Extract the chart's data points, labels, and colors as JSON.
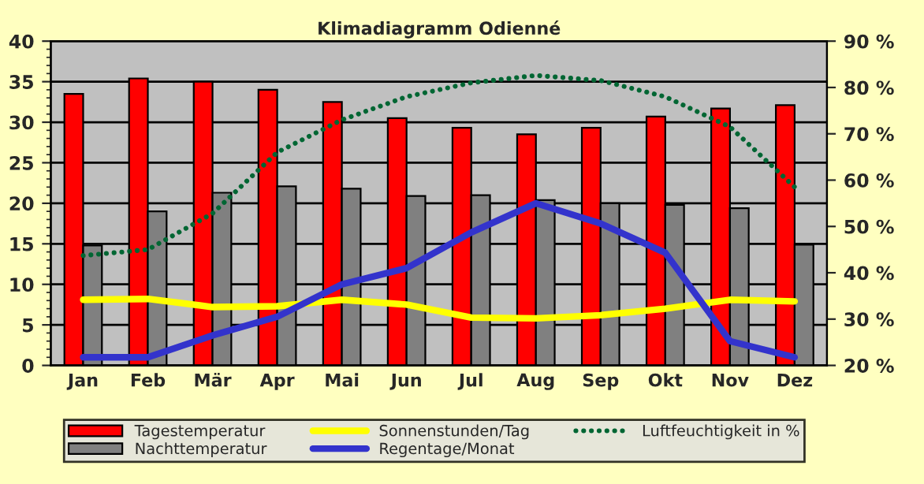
{
  "chart_data": {
    "type": "bar",
    "title": "Klimadiagramm Odienné",
    "categories": [
      "Jan",
      "Feb",
      "Mär",
      "Apr",
      "Mai",
      "Jun",
      "Jul",
      "Aug",
      "Sep",
      "Okt",
      "Nov",
      "Dez"
    ],
    "series": [
      {
        "name": "Tagestemperatur",
        "color": "#ff0000",
        "values": [
          33.5,
          35.4,
          35,
          34,
          32.5,
          30.5,
          29.3,
          28.5,
          29.3,
          30.7,
          31.7,
          32.1
        ]
      },
      {
        "name": "Nachttemperatur",
        "color": "#808080",
        "values": [
          14.8,
          19,
          21.3,
          22.1,
          21.8,
          20.9,
          21,
          20.4,
          20,
          19.8,
          19.4,
          14.9
        ]
      },
      {
        "name": "Sonnenstunden/Tag",
        "type": "line",
        "color": "#ffff00",
        "line_style": "solid",
        "values": [
          8.1,
          8.2,
          7.2,
          7.3,
          8.1,
          7.5,
          5.9,
          5.8,
          6.2,
          7.0,
          8.1,
          7.9
        ]
      },
      {
        "name": "Regentage/Monat",
        "type": "line",
        "color": "#3333cc",
        "line_style": "solid",
        "values": [
          1,
          1,
          3.7,
          6,
          10,
          12,
          16.4,
          20,
          17.5,
          13.9,
          3,
          1
        ]
      },
      {
        "name": "Luftfeuchtigkeit in %",
        "type": "line",
        "color": "#006633",
        "line_style": "dotted",
        "axis": "y2",
        "values": [
          43.7,
          45,
          52.8,
          66,
          73,
          78,
          81,
          82.6,
          81.5,
          78,
          71.5,
          58.5
        ]
      }
    ],
    "ylim": [
      0,
      40
    ],
    "yticks": [
      0,
      5,
      10,
      15,
      20,
      25,
      30,
      35,
      40
    ],
    "y2lim": [
      20,
      90
    ],
    "y2ticks": [
      {
        "value": 20,
        "label": "20 %"
      },
      {
        "value": 30,
        "label": "30 %"
      },
      {
        "value": 40,
        "label": "40 %"
      },
      {
        "value": 50,
        "label": "50 %"
      },
      {
        "value": 60,
        "label": "60 %"
      },
      {
        "value": 70,
        "label": "70 %"
      },
      {
        "value": 80,
        "label": "80 %"
      },
      {
        "value": 90,
        "label": "90 %"
      }
    ],
    "grid": "y",
    "legend": "bottom"
  }
}
